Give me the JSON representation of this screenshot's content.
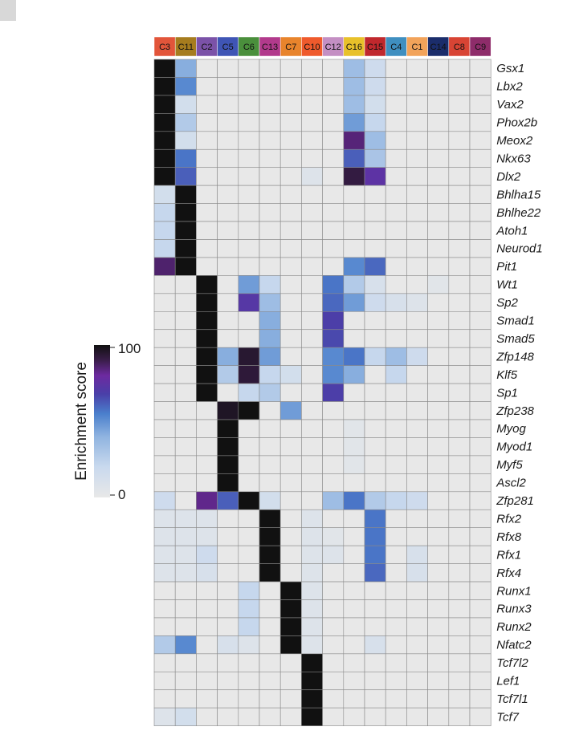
{
  "chart_data": {
    "type": "heatmap",
    "colorbar": {
      "title": "Enrichment score",
      "min": 0,
      "max": 100,
      "tick_labels": [
        "0",
        "100"
      ]
    },
    "columns": [
      {
        "label": "C3",
        "color": "#e2553a"
      },
      {
        "label": "C11",
        "color": "#a67c1e"
      },
      {
        "label": "C2",
        "color": "#7b52a8"
      },
      {
        "label": "C5",
        "color": "#3f55b5"
      },
      {
        "label": "C6",
        "color": "#4a8f3c"
      },
      {
        "label": "C13",
        "color": "#b23a8c"
      },
      {
        "label": "C7",
        "color": "#e8842c"
      },
      {
        "label": "C10",
        "color": "#ef5a2c"
      },
      {
        "label": "C12",
        "color": "#c48fc3"
      },
      {
        "label": "C16",
        "color": "#e8c12a"
      },
      {
        "label": "C15",
        "color": "#c0282d"
      },
      {
        "label": "C4",
        "color": "#3f8fc0"
      },
      {
        "label": "C1",
        "color": "#f2a35a"
      },
      {
        "label": "C14",
        "color": "#1b2d6b"
      },
      {
        "label": "C8",
        "color": "#d84434"
      },
      {
        "label": "C9",
        "color": "#8e2c6a"
      }
    ],
    "rows": [
      "Gsx1",
      "Lbx2",
      "Vax2",
      "Phox2b",
      "Meox2",
      "Nkx63",
      "Dlx2",
      "Bhlha15",
      "Bhlhe22",
      "Atoh1",
      "Neurod1",
      "Pit1",
      "Wt1",
      "Sp2",
      "Smad1",
      "Smad5",
      "Zfp148",
      "Klf5",
      "Sp1",
      "Zfp238",
      "Myog",
      "Myod1",
      "Myf5",
      "Ascl2",
      "Zfp281",
      "Rfx2",
      "Rfx8",
      "Rfx1",
      "Rfx4",
      "Runx1",
      "Runx3",
      "Runx2",
      "Nfatc2",
      "Tcf7l2",
      "Lef1",
      "Tcf7l1",
      "Tcf7"
    ],
    "values": [
      [
        100,
        30,
        0,
        0,
        0,
        0,
        0,
        0,
        0,
        25,
        12,
        0,
        0,
        0,
        0,
        0
      ],
      [
        100,
        40,
        0,
        0,
        0,
        0,
        0,
        0,
        0,
        25,
        12,
        0,
        0,
        0,
        0,
        0
      ],
      [
        100,
        10,
        0,
        0,
        0,
        0,
        0,
        0,
        0,
        25,
        10,
        0,
        0,
        0,
        0,
        0
      ],
      [
        100,
        20,
        0,
        0,
        0,
        0,
        0,
        0,
        0,
        35,
        15,
        0,
        0,
        0,
        0,
        0
      ],
      [
        100,
        10,
        0,
        0,
        0,
        0,
        0,
        0,
        0,
        78,
        25,
        0,
        0,
        0,
        0,
        0
      ],
      [
        100,
        45,
        0,
        0,
        0,
        0,
        0,
        0,
        0,
        50,
        22,
        0,
        0,
        0,
        0,
        0
      ],
      [
        100,
        50,
        0,
        0,
        0,
        0,
        0,
        5,
        0,
        88,
        65,
        0,
        0,
        0,
        0,
        0
      ],
      [
        10,
        100,
        0,
        0,
        0,
        0,
        0,
        0,
        0,
        0,
        0,
        0,
        0,
        0,
        0,
        0
      ],
      [
        15,
        100,
        0,
        0,
        0,
        0,
        0,
        0,
        0,
        0,
        0,
        0,
        0,
        0,
        0,
        0
      ],
      [
        15,
        100,
        0,
        0,
        0,
        0,
        0,
        0,
        0,
        0,
        0,
        0,
        0,
        0,
        0,
        0
      ],
      [
        15,
        100,
        0,
        0,
        0,
        0,
        0,
        0,
        0,
        0,
        0,
        0,
        0,
        0,
        0,
        0
      ],
      [
        80,
        100,
        0,
        0,
        0,
        0,
        0,
        0,
        0,
        40,
        48,
        0,
        0,
        0,
        0,
        0
      ],
      [
        0,
        0,
        100,
        0,
        35,
        15,
        0,
        0,
        45,
        20,
        8,
        0,
        0,
        3,
        0,
        0
      ],
      [
        0,
        0,
        100,
        0,
        62,
        25,
        0,
        0,
        48,
        35,
        12,
        8,
        5,
        0,
        0,
        0
      ],
      [
        0,
        0,
        100,
        0,
        0,
        30,
        0,
        0,
        58,
        0,
        0,
        0,
        0,
        0,
        0,
        0
      ],
      [
        0,
        0,
        100,
        0,
        0,
        30,
        0,
        0,
        55,
        0,
        0,
        0,
        0,
        0,
        0,
        0
      ],
      [
        0,
        0,
        100,
        30,
        92,
        35,
        0,
        0,
        40,
        45,
        15,
        25,
        12,
        0,
        0,
        0
      ],
      [
        0,
        0,
        100,
        20,
        90,
        15,
        10,
        0,
        40,
        30,
        0,
        15,
        0,
        0,
        0,
        0
      ],
      [
        0,
        0,
        100,
        0,
        15,
        20,
        0,
        0,
        58,
        0,
        0,
        0,
        0,
        0,
        0,
        0
      ],
      [
        0,
        0,
        0,
        95,
        100,
        0,
        35,
        0,
        0,
        0,
        0,
        0,
        0,
        0,
        0,
        0
      ],
      [
        0,
        0,
        0,
        100,
        0,
        0,
        0,
        0,
        0,
        3,
        0,
        0,
        0,
        0,
        0,
        0
      ],
      [
        0,
        0,
        0,
        100,
        0,
        0,
        0,
        0,
        0,
        3,
        0,
        0,
        0,
        0,
        0,
        0
      ],
      [
        0,
        0,
        0,
        100,
        0,
        0,
        0,
        0,
        0,
        3,
        0,
        0,
        0,
        0,
        0,
        0
      ],
      [
        0,
        0,
        0,
        100,
        0,
        0,
        0,
        0,
        0,
        0,
        0,
        0,
        0,
        0,
        0,
        0
      ],
      [
        12,
        0,
        75,
        50,
        100,
        10,
        0,
        0,
        25,
        45,
        20,
        15,
        12,
        0,
        0,
        0
      ],
      [
        5,
        5,
        5,
        0,
        0,
        100,
        0,
        5,
        0,
        0,
        45,
        0,
        0,
        0,
        0,
        0
      ],
      [
        5,
        5,
        5,
        0,
        0,
        100,
        0,
        5,
        3,
        0,
        45,
        0,
        0,
        0,
        0,
        0
      ],
      [
        5,
        5,
        12,
        0,
        0,
        100,
        0,
        5,
        5,
        0,
        45,
        0,
        8,
        0,
        0,
        0
      ],
      [
        5,
        5,
        8,
        0,
        0,
        100,
        0,
        5,
        0,
        0,
        48,
        0,
        8,
        0,
        0,
        0
      ],
      [
        0,
        0,
        0,
        0,
        15,
        0,
        100,
        5,
        0,
        0,
        0,
        0,
        0,
        0,
        0,
        0
      ],
      [
        0,
        0,
        0,
        0,
        15,
        0,
        100,
        5,
        0,
        0,
        0,
        0,
        0,
        0,
        0,
        0
      ],
      [
        0,
        0,
        0,
        0,
        15,
        0,
        100,
        5,
        0,
        0,
        0,
        0,
        0,
        0,
        0,
        0
      ],
      [
        20,
        40,
        0,
        8,
        5,
        0,
        100,
        5,
        0,
        0,
        8,
        0,
        0,
        0,
        0,
        0
      ],
      [
        0,
        0,
        0,
        0,
        0,
        0,
        0,
        100,
        0,
        0,
        0,
        0,
        0,
        0,
        0,
        0
      ],
      [
        0,
        0,
        0,
        0,
        0,
        0,
        0,
        100,
        0,
        0,
        0,
        0,
        0,
        0,
        0,
        0
      ],
      [
        0,
        0,
        0,
        0,
        0,
        0,
        0,
        100,
        0,
        0,
        0,
        0,
        0,
        0,
        0,
        0
      ],
      [
        5,
        10,
        0,
        0,
        0,
        0,
        0,
        100,
        0,
        0,
        0,
        0,
        0,
        0,
        0,
        0
      ]
    ],
    "colormap": [
      "#e8e8e8",
      "#c9d9ee",
      "#8fb3e0",
      "#4a7fcc",
      "#4a3fa8",
      "#6d2aa0",
      "#3a1d4a",
      "#111111"
    ]
  }
}
